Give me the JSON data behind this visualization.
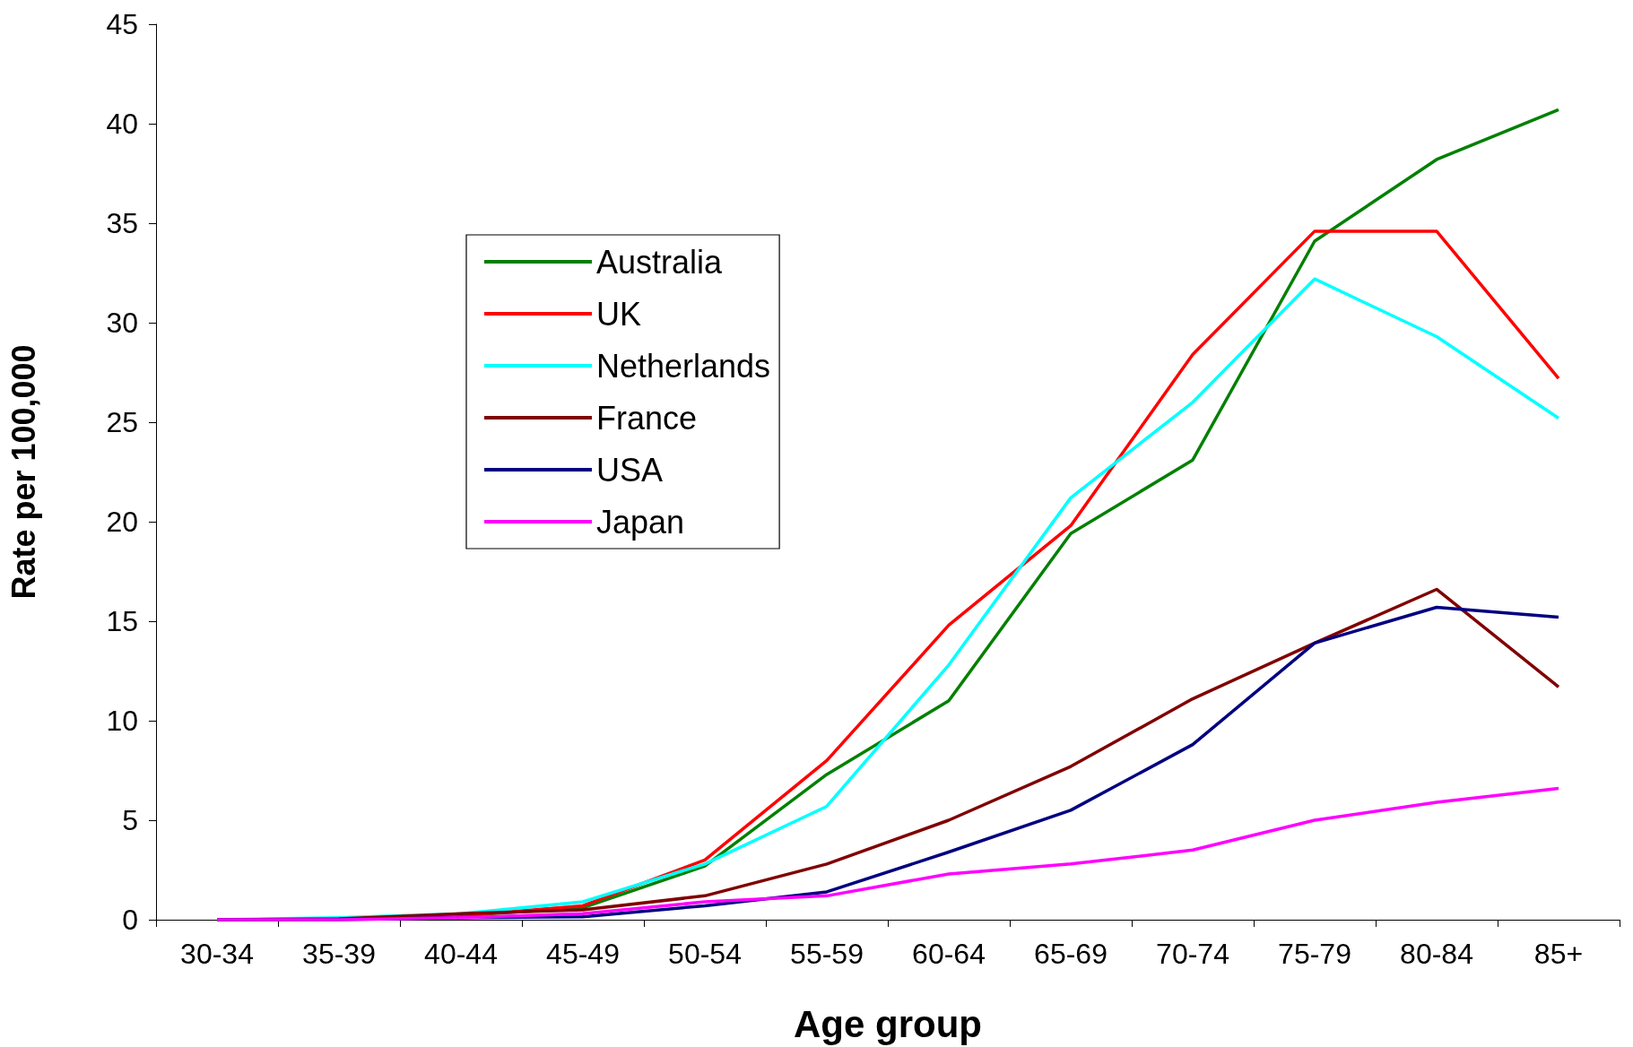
{
  "chart_data": {
    "type": "line",
    "xlabel": "Age group",
    "ylabel": "Rate per 100,000",
    "categories": [
      "30-34",
      "35-39",
      "40-44",
      "45-49",
      "50-54",
      "55-59",
      "60-64",
      "65-69",
      "70-74",
      "75-79",
      "80-84",
      "85+"
    ],
    "series": [
      {
        "name": "Australia",
        "color": "#008000",
        "values": [
          null,
          null,
          0.2,
          0.6,
          2.7,
          7.3,
          11,
          19.4,
          23.1,
          34.1,
          38.2,
          40.7
        ]
      },
      {
        "name": "UK",
        "color": "#ff0000",
        "values": [
          0,
          0.05,
          0.2,
          0.7,
          3.0,
          8.0,
          14.8,
          19.8,
          28.4,
          34.6,
          34.6,
          27.2
        ]
      },
      {
        "name": "Netherlands",
        "color": "#00ffff",
        "values": [
          0,
          0.1,
          0.3,
          0.9,
          2.8,
          5.7,
          12.8,
          21.2,
          26.0,
          32.2,
          29.3,
          25.2
        ]
      },
      {
        "name": "France",
        "color": "#800000",
        "values": [
          0,
          0.05,
          0.3,
          0.5,
          1.2,
          2.8,
          5.0,
          7.7,
          11.1,
          13.9,
          16.6,
          11.7
        ]
      },
      {
        "name": "USA",
        "color": "#000080",
        "values": [
          0,
          0,
          0.1,
          0.15,
          0.7,
          1.4,
          3.4,
          5.5,
          8.8,
          13.9,
          15.7,
          15.2
        ]
      },
      {
        "name": "Japan",
        "color": "#ff00ff",
        "values": [
          0,
          0,
          0.1,
          0.3,
          0.9,
          1.2,
          2.3,
          2.8,
          3.5,
          5.0,
          5.9,
          6.6
        ]
      }
    ],
    "ylim": [
      0,
      45
    ],
    "yticks": [
      0,
      5,
      10,
      15,
      20,
      25,
      30,
      35,
      40,
      45
    ],
    "grid": false,
    "legend": "top",
    "marker": "none",
    "line_style": "solid"
  }
}
